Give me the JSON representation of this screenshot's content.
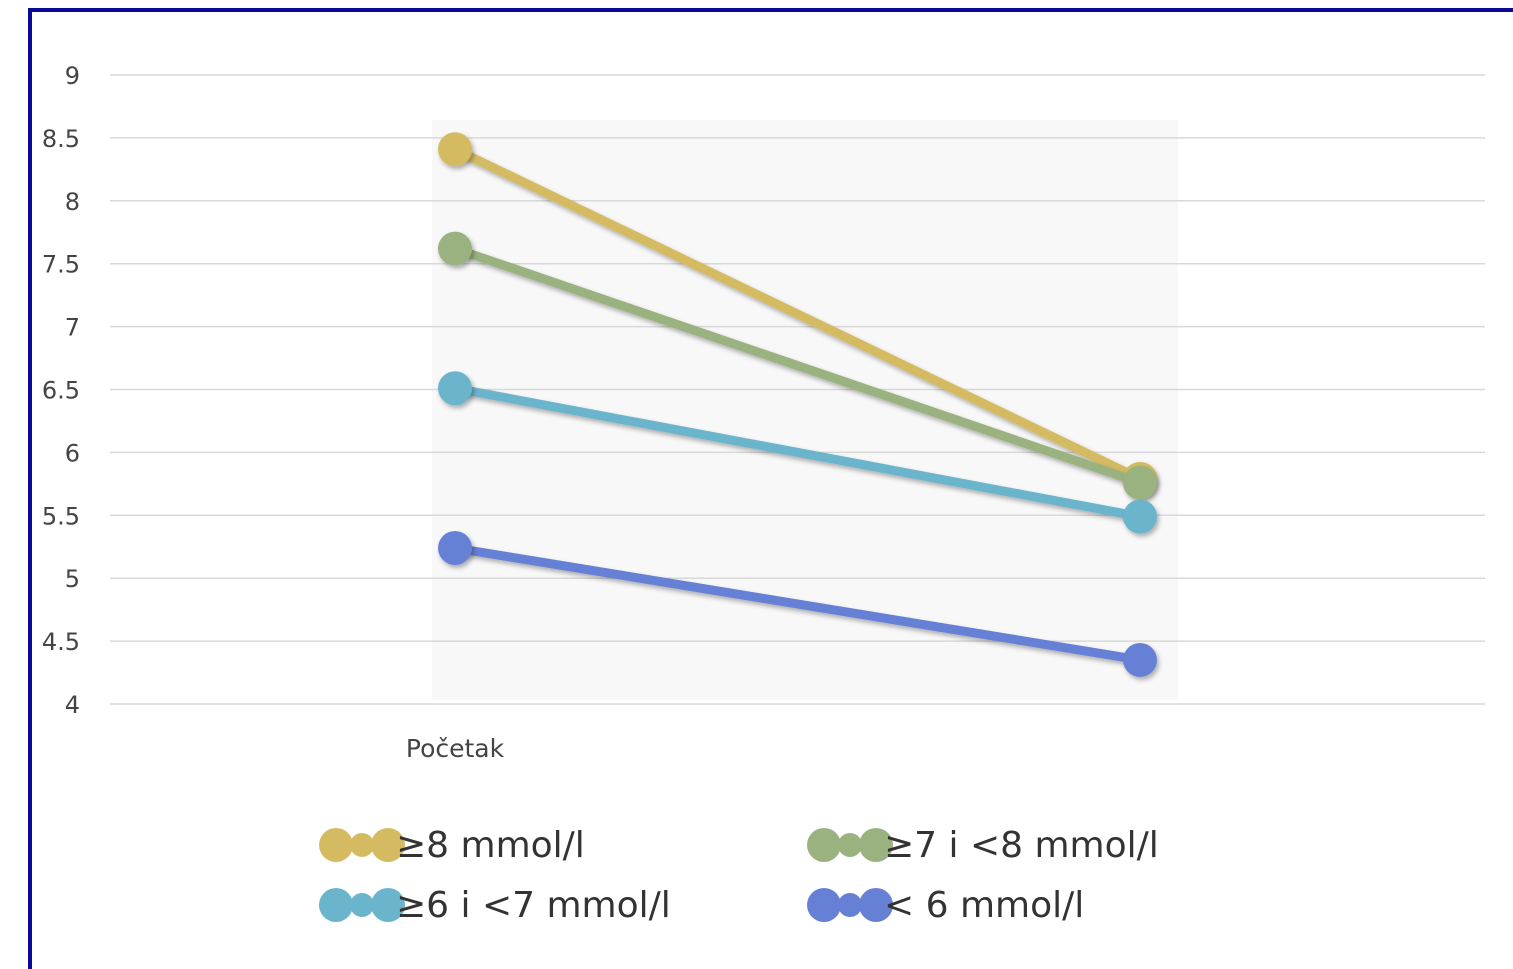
{
  "chart_data": {
    "type": "line",
    "categories": [
      "Početak",
      ""
    ],
    "series": [
      {
        "name": "≥8 mmol/l",
        "values": [
          8.41,
          5.79
        ],
        "color": "#d4bb62"
      },
      {
        "name": "≥7 i <8 mmol/l",
        "values": [
          7.62,
          5.76
        ],
        "color": "#9ab27f"
      },
      {
        "name": "≥6 i <7 mmol/l",
        "values": [
          6.51,
          5.49
        ],
        "color": "#6ab4cc"
      },
      {
        "name": "< 6 mmol/l",
        "values": [
          5.24,
          4.35
        ],
        "color": "#6680d6"
      }
    ],
    "yticks": [
      "9",
      "8.5",
      "8",
      "7.5",
      "7",
      "6.5",
      "6",
      "5.5",
      "5",
      "4.5",
      "4"
    ],
    "ylim": [
      4,
      9
    ],
    "grid": true,
    "legend_position": "bottom"
  },
  "colors": {
    "frame": "#0a0a9a",
    "grid": "#d9d9d9",
    "plot_background": "#f8f8f8"
  }
}
